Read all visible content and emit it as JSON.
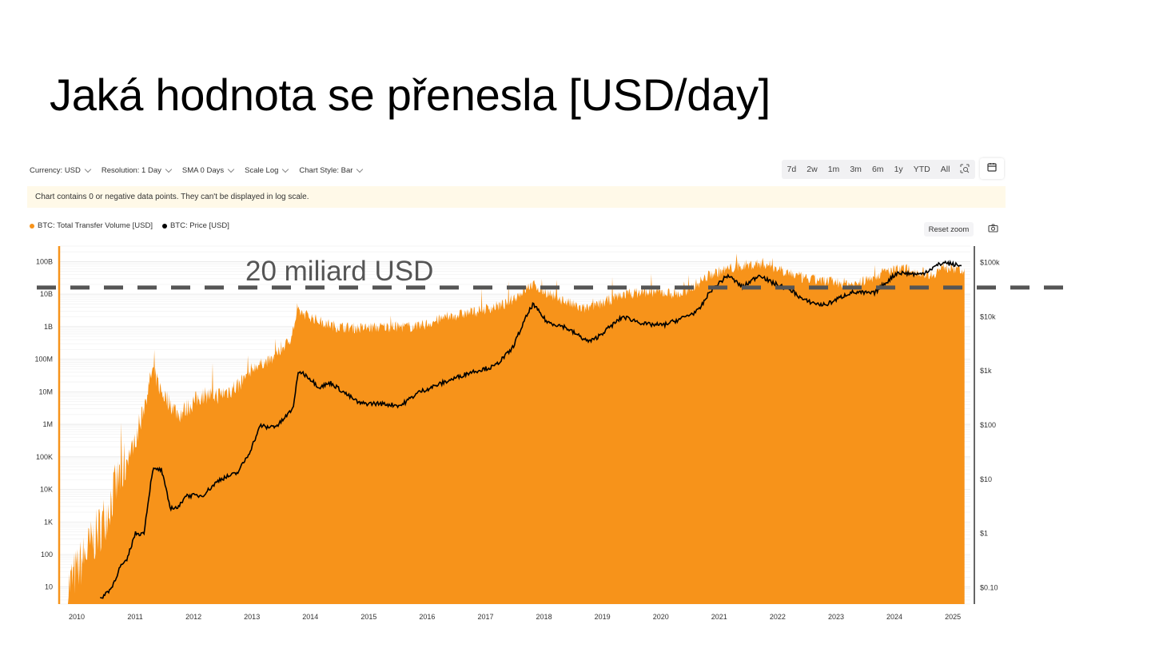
{
  "slide": {
    "title": "Jaká hodnota se přenesla [USD/day]",
    "annotation": "20 miliard USD"
  },
  "toolbar": {
    "currency": "Currency: USD",
    "resolution": "Resolution: 1 Day",
    "sma": "SMA 0 Days",
    "scale": "Scale Log",
    "style": "Chart Style: Bar",
    "ranges": [
      "7d",
      "2w",
      "1m",
      "3m",
      "6m",
      "1y",
      "YTD",
      "All"
    ],
    "zoom_icon": "zoom-select-icon",
    "calendar_icon": "calendar-icon"
  },
  "warning": "Chart contains 0 or negative data points. They can't be displayed in log scale.",
  "reset_zoom": "Reset zoom",
  "camera_icon": "camera-icon",
  "legend": [
    {
      "label": "BTC: Total Transfer Volume [USD]",
      "color": "#f7931a"
    },
    {
      "label": "BTC: Price [USD]",
      "color": "#000000"
    }
  ],
  "chart_data": {
    "type": "area",
    "x_tick_labels": [
      "2010",
      "2011",
      "2012",
      "2013",
      "2014",
      "2015",
      "2016",
      "2017",
      "2018",
      "2019",
      "2020",
      "2021",
      "2022",
      "2023",
      "2024",
      "2025"
    ],
    "y_left_tick_labels": [
      "10",
      "100",
      "1K",
      "10K",
      "100K",
      "1M",
      "10M",
      "100M",
      "1B",
      "10B",
      "100B"
    ],
    "y_right_tick_labels": [
      "$0.10",
      "$1",
      "$10",
      "$100",
      "$1k",
      "$10k",
      "$100k"
    ],
    "ylim_left": [
      3,
      300000000000
    ],
    "ylim_right": [
      0.05,
      200000
    ],
    "xlim": [
      2009.85,
      2025.45
    ],
    "scale": "log",
    "threshold_line": {
      "value": 20000000000,
      "style": "dashed"
    },
    "series": [
      {
        "name": "BTC: Total Transfer Volume [USD]",
        "axis": "left",
        "color": "#f7931a",
        "x": [
          2010.0,
          2010.3,
          2010.6,
          2010.9,
          2011.2,
          2011.45,
          2011.6,
          2011.9,
          2012.3,
          2012.6,
          2012.9,
          2013.2,
          2013.5,
          2013.8,
          2013.95,
          2014.3,
          2014.6,
          2015.0,
          2015.5,
          2016.0,
          2016.5,
          2017.0,
          2017.5,
          2017.95,
          2018.3,
          2018.8,
          2019.0,
          2019.5,
          2020.0,
          2020.5,
          2021.0,
          2021.3,
          2021.7,
          2021.9,
          2022.3,
          2022.6,
          2023.0,
          2023.5,
          2024.0,
          2024.3,
          2024.8,
          2025.0,
          2025.35
        ],
        "values": [
          10,
          100,
          1000,
          30000,
          500000,
          50000000,
          10000000,
          2000000,
          8000000,
          8000000,
          15000000,
          60000000,
          100000000,
          400000000,
          3000000000,
          1500000000,
          1000000000,
          900000000,
          1000000000,
          1000000000,
          2000000000,
          3000000000,
          5000000000,
          20000000000,
          9000000000,
          3500000000,
          4000000000,
          10000000000,
          12000000000,
          10000000000,
          40000000000,
          60000000000,
          80000000000,
          90000000000,
          50000000000,
          30000000000,
          25000000000,
          20000000000,
          50000000000,
          60000000000,
          40000000000,
          70000000000,
          50000000000
        ]
      },
      {
        "name": "BTC: Price [USD]",
        "axis": "right",
        "color": "#000000",
        "x": [
          2010.55,
          2010.6,
          2010.75,
          2010.9,
          2011.0,
          2011.15,
          2011.3,
          2011.45,
          2011.6,
          2011.75,
          2011.9,
          2012.0,
          2012.3,
          2012.6,
          2012.9,
          2013.1,
          2013.3,
          2013.4,
          2013.6,
          2013.85,
          2013.95,
          2014.1,
          2014.3,
          2014.5,
          2014.8,
          2015.0,
          2015.3,
          2015.7,
          2016.0,
          2016.5,
          2016.9,
          2017.3,
          2017.6,
          2017.85,
          2017.96,
          2018.2,
          2018.5,
          2018.9,
          2019.0,
          2019.5,
          2019.9,
          2020.2,
          2020.5,
          2020.8,
          2021.0,
          2021.3,
          2021.55,
          2021.85,
          2022.0,
          2022.4,
          2022.6,
          2022.9,
          2023.0,
          2023.4,
          2023.8,
          2024.0,
          2024.2,
          2024.6,
          2024.9,
          2025.0,
          2025.3
        ],
        "values": [
          0.06,
          0.07,
          0.1,
          0.25,
          0.3,
          1,
          1,
          15,
          15,
          3,
          3,
          5,
          5,
          10,
          13,
          30,
          100,
          90,
          100,
          200,
          1000,
          800,
          500,
          600,
          350,
          250,
          250,
          230,
          400,
          650,
          950,
          1200,
          2500,
          10000,
          17000,
          8000,
          6500,
          3500,
          3700,
          10000,
          7200,
          7000,
          9200,
          13000,
          30000,
          58000,
          35000,
          60000,
          45000,
          30000,
          20000,
          16500,
          17000,
          28000,
          27000,
          42000,
          65000,
          60000,
          90000,
          100000,
          85000
        ]
      }
    ]
  }
}
